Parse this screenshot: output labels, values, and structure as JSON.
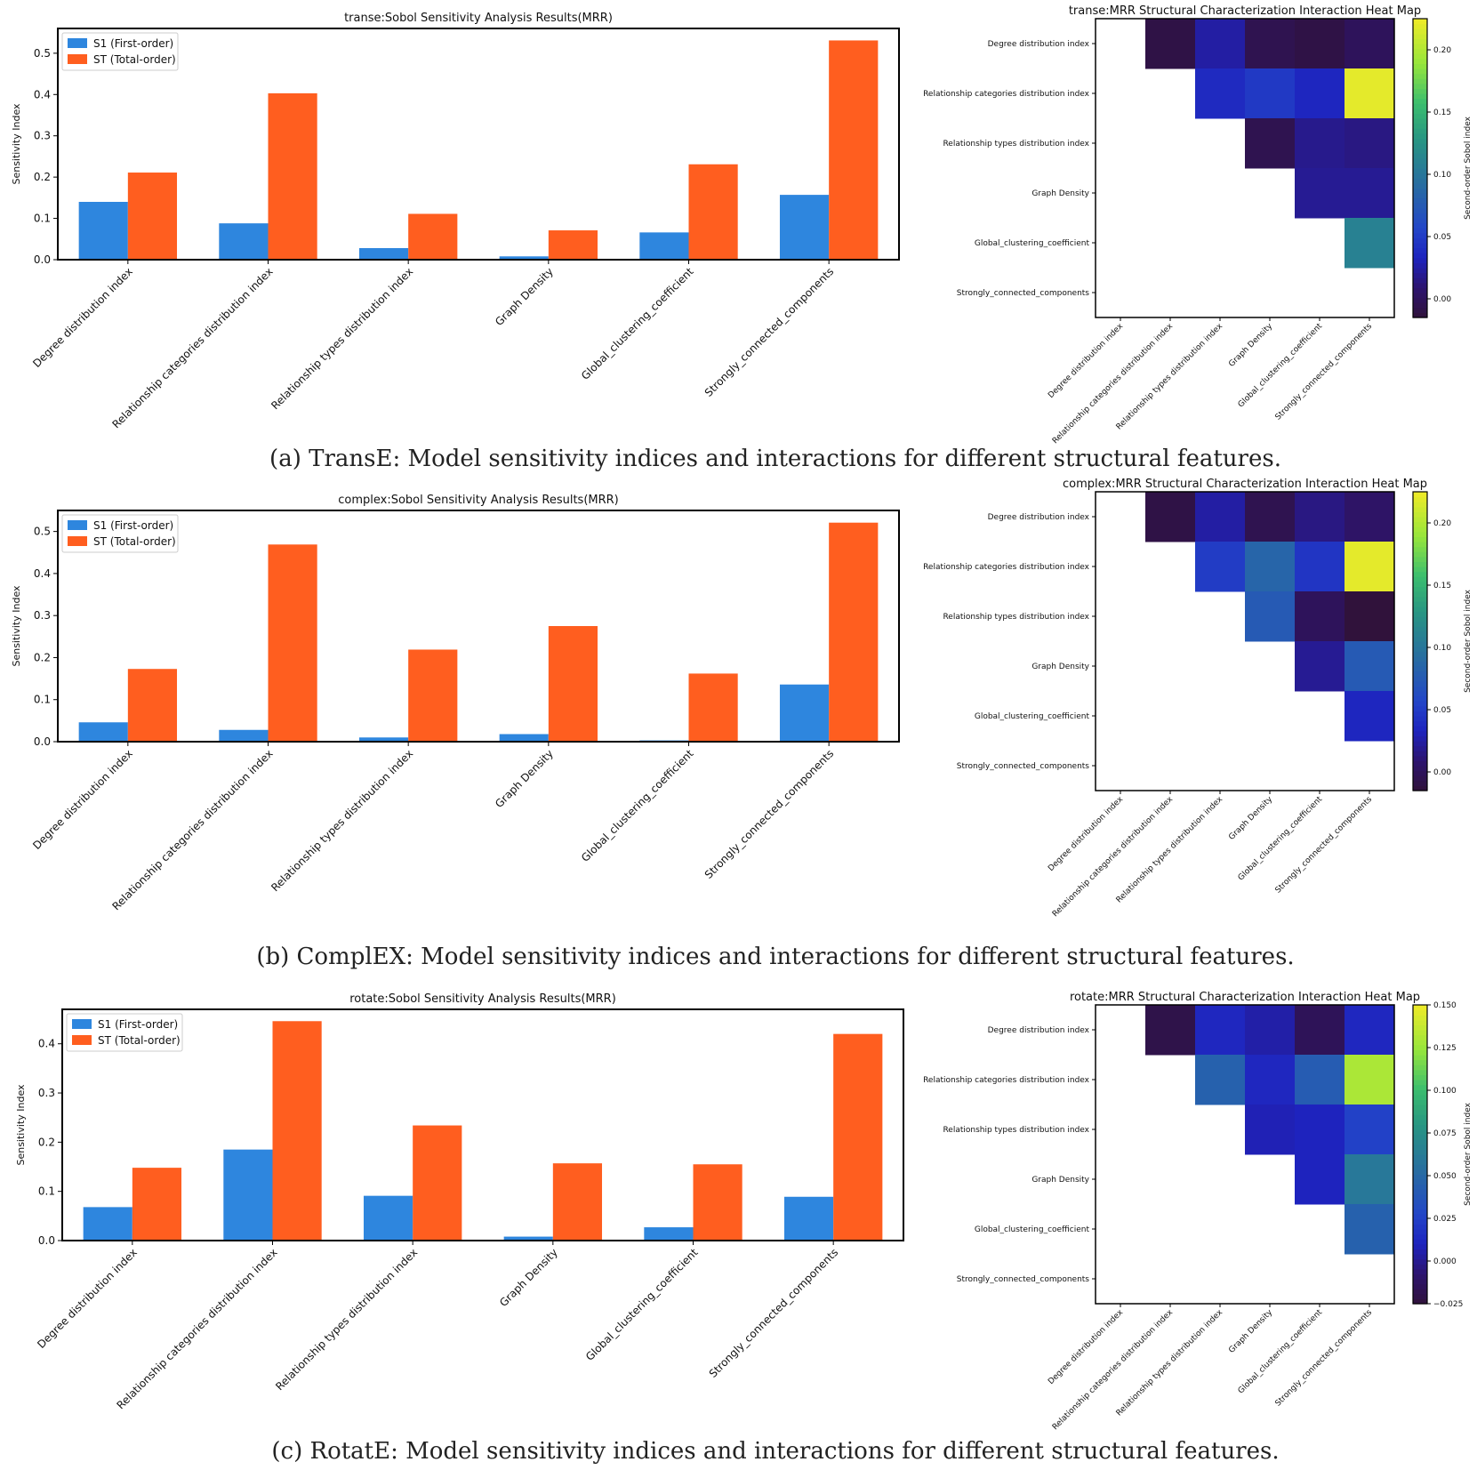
{
  "chart_data": [
    {
      "type": "bar",
      "title": "transe:Sobol Sensitivity Analysis Results(MRR)",
      "ylabel": "Sensitivity Index",
      "ylim": [
        0,
        0.56
      ],
      "yticks": [
        0.0,
        0.1,
        0.2,
        0.3,
        0.4,
        0.5
      ],
      "categories": [
        "Degree distribution index",
        "Relationship categories distribution index",
        "Relationship types distribution index",
        "Graph Density",
        "Global_clustering_coefficient",
        "Strongly_connected_components"
      ],
      "series": [
        {
          "name": "S1 (First-order)",
          "color": "#2e86de",
          "values": [
            0.14,
            0.088,
            0.028,
            0.008,
            0.066,
            0.157
          ]
        },
        {
          "name": "ST (Total-order)",
          "color": "#ff5e1f",
          "values": [
            0.211,
            0.403,
            0.111,
            0.071,
            0.231,
            0.531
          ]
        }
      ],
      "legend": "top-left"
    },
    {
      "type": "heatmap",
      "title": "transe:MRR  Structural Characterization Interaction Heat Map",
      "labels": [
        "Degree distribution index",
        "Relationship categories distribution index",
        "Relationship types distribution index",
        "Graph Density",
        "Global_clustering_coefficient",
        "Strongly_connected_components"
      ],
      "values": [
        [
          null,
          -0.01,
          0.025,
          -0.005,
          -0.01,
          0.0
        ],
        [
          null,
          null,
          0.038,
          0.048,
          0.035,
          0.22
        ],
        [
          null,
          null,
          null,
          -0.005,
          0.018,
          0.015
        ],
        [
          null,
          null,
          null,
          null,
          0.02,
          0.02
        ],
        [
          null,
          null,
          null,
          null,
          null,
          0.11
        ],
        [
          null,
          null,
          null,
          null,
          null,
          null
        ]
      ],
      "vmin": -0.015,
      "vmax": 0.225,
      "cbar_ticks": [
        0.0,
        0.05,
        0.1,
        0.15,
        0.2
      ],
      "cbar_labels": [
        "0.00",
        "0.05",
        "0.10",
        "0.15",
        "0.20"
      ],
      "cbar_label": "Second-order Sobol index"
    },
    {
      "type": "bar",
      "title": "complex:Sobol Sensitivity Analysis Results(MRR)",
      "ylabel": "Sensitivity Index",
      "ylim": [
        0,
        0.55
      ],
      "yticks": [
        0.0,
        0.1,
        0.2,
        0.3,
        0.4,
        0.5
      ],
      "categories": [
        "Degree distribution index",
        "Relationship categories distribution index",
        "Relationship types distribution index",
        "Graph Density",
        "Global_clustering_coefficient",
        "Strongly_connected_components"
      ],
      "series": [
        {
          "name": "S1 (First-order)",
          "color": "#2e86de",
          "values": [
            0.046,
            0.028,
            0.01,
            0.018,
            0.003,
            0.136
          ]
        },
        {
          "name": "ST (Total-order)",
          "color": "#ff5e1f",
          "values": [
            0.173,
            0.469,
            0.219,
            0.275,
            0.162,
            0.521
          ]
        }
      ],
      "legend": "top-left"
    },
    {
      "type": "heatmap",
      "title": "complex:MRR  Structural Characterization Interaction Heat Map",
      "labels": [
        "Degree distribution index",
        "Relationship categories distribution index",
        "Relationship types distribution index",
        "Graph Density",
        "Global_clustering_coefficient",
        "Strongly_connected_components"
      ],
      "values": [
        [
          null,
          -0.01,
          0.025,
          -0.005,
          0.015,
          0.005
        ],
        [
          null,
          null,
          0.05,
          0.085,
          0.045,
          0.22
        ],
        [
          null,
          null,
          null,
          0.075,
          0.0,
          -0.015
        ],
        [
          null,
          null,
          null,
          null,
          0.02,
          0.075
        ],
        [
          null,
          null,
          null,
          null,
          null,
          0.035
        ],
        [
          null,
          null,
          null,
          null,
          null,
          null
        ]
      ],
      "vmin": -0.015,
      "vmax": 0.225,
      "cbar_ticks": [
        0.0,
        0.05,
        0.1,
        0.15,
        0.2
      ],
      "cbar_labels": [
        "0.00",
        "0.05",
        "0.10",
        "0.15",
        "0.20"
      ],
      "cbar_label": "Second-order Sobol index"
    },
    {
      "type": "bar",
      "title": "rotate:Sobol Sensitivity Analysis Results(MRR)",
      "ylabel": "Sensitivity Index",
      "ylim": [
        0,
        0.47
      ],
      "yticks": [
        0.0,
        0.1,
        0.2,
        0.3,
        0.4
      ],
      "categories": [
        "Degree distribution index",
        "Relationship categories distribution index",
        "Relationship types distribution index",
        "Graph Density",
        "Global_clustering_coefficient",
        "Strongly_connected_components"
      ],
      "series": [
        {
          "name": "S1 (First-order)",
          "color": "#2e86de",
          "values": [
            0.068,
            0.185,
            0.091,
            0.008,
            0.027,
            0.089
          ]
        },
        {
          "name": "ST (Total-order)",
          "color": "#ff5e1f",
          "values": [
            0.148,
            0.446,
            0.234,
            0.157,
            0.155,
            0.42
          ]
        }
      ],
      "legend": "top-left"
    },
    {
      "type": "heatmap",
      "title": "rotate:MRR  Structural Characterization Interaction Heat Map",
      "labels": [
        "Degree distribution index",
        "Relationship categories distribution index",
        "Relationship types distribution index",
        "Graph Density",
        "Global_clustering_coefficient",
        "Strongly_connected_components"
      ],
      "values": [
        [
          null,
          -0.02,
          0.012,
          0.005,
          -0.015,
          0.012
        ],
        [
          null,
          null,
          0.045,
          0.012,
          0.042,
          0.13
        ],
        [
          null,
          null,
          null,
          0.008,
          0.01,
          0.025
        ],
        [
          null,
          null,
          null,
          null,
          0.01,
          0.06
        ],
        [
          null,
          null,
          null,
          null,
          null,
          0.045
        ],
        [
          null,
          null,
          null,
          null,
          null,
          null
        ]
      ],
      "vmin": -0.025,
      "vmax": 0.15,
      "cbar_ticks": [
        -0.025,
        0.0,
        0.025,
        0.05,
        0.075,
        0.1,
        0.125,
        0.15
      ],
      "cbar_labels": [
        "−0.025",
        "0.000",
        "0.025",
        "0.050",
        "0.075",
        "0.100",
        "0.125",
        "0.150"
      ],
      "cbar_label": "Second-order Sobol index"
    }
  ],
  "captions": [
    "(a) TransE: Model sensitivity indices and interactions for different structural features.",
    "(b) ComplEX: Model sensitivity indices and interactions for different structural features.",
    "(c) RotatE: Model sensitivity indices and interactions for different structural features."
  ]
}
